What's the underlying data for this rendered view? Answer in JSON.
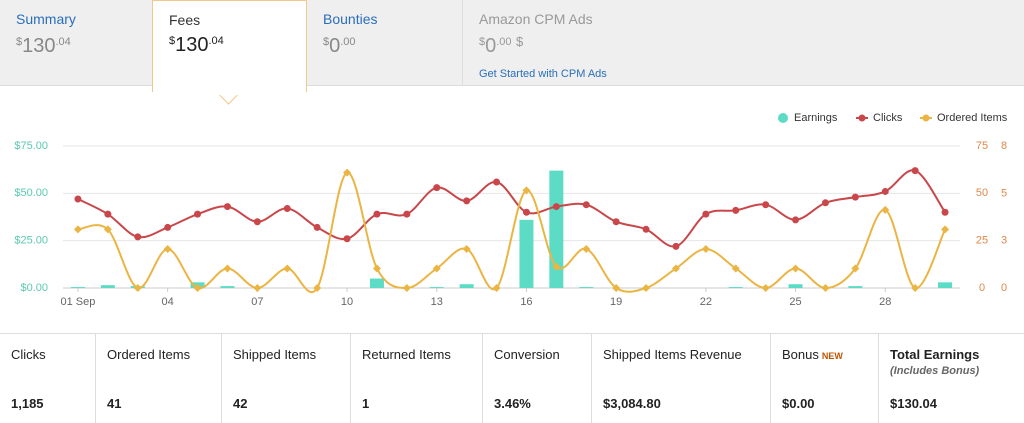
{
  "tabs": [
    {
      "label": "Summary",
      "amount": {
        "currency": "$",
        "whole": "130",
        "fraction": ".04"
      }
    },
    {
      "label": "Fees",
      "amount": {
        "currency": "$",
        "whole": "130",
        "fraction": ".04"
      }
    },
    {
      "label": "Bounties",
      "amount": {
        "currency": "$",
        "whole": "0",
        "fraction": ".00"
      }
    },
    {
      "label": "Amazon CPM Ads",
      "amount": {
        "currency": "$",
        "whole": "0",
        "fraction": ".00",
        "suffix": "$"
      },
      "link": "Get Started with CPM Ads"
    }
  ],
  "chart_data": {
    "type": "combo",
    "categories": [
      "01 Sep",
      null,
      null,
      "04",
      null,
      null,
      "07",
      null,
      null,
      "10",
      null,
      null,
      "13",
      null,
      null,
      "16",
      null,
      null,
      "19",
      null,
      null,
      "22",
      null,
      null,
      "25",
      null,
      null,
      "28",
      null,
      null
    ],
    "series": [
      {
        "name": "Earnings",
        "type": "bar",
        "axis": "y",
        "color": "#5cdcc4",
        "values": [
          0.5,
          1.5,
          1,
          0,
          3,
          1,
          0,
          0,
          0,
          0,
          5,
          0,
          0.5,
          2,
          0,
          36,
          62,
          0.5,
          0,
          0,
          0,
          0,
          0.5,
          0,
          2,
          0,
          1,
          0,
          0,
          3
        ]
      },
      {
        "name": "Clicks",
        "type": "line",
        "axis": "y2",
        "color": "#c9474a",
        "values": [
          47,
          39,
          27,
          32,
          39,
          43,
          35,
          42,
          32,
          26,
          39,
          39,
          53,
          46,
          56,
          40,
          43,
          44,
          35,
          31,
          22,
          39,
          41,
          44,
          36,
          45,
          48,
          51,
          62,
          40
        ]
      },
      {
        "name": "Ordered Items",
        "type": "line",
        "axis": "y3",
        "color": "#ebb544",
        "values": [
          3.3,
          3.3,
          0,
          2.2,
          0,
          1.1,
          0,
          1.1,
          0,
          6.5,
          1.1,
          0,
          1.1,
          2.2,
          0,
          5.5,
          1.2,
          2.2,
          0,
          0,
          1.1,
          2.2,
          1.1,
          0,
          1.1,
          0,
          1.1,
          4.4,
          0,
          3.3
        ]
      }
    ],
    "ylim": [
      0,
      75
    ],
    "yticks": [
      {
        "value": 0,
        "label": "$0.00"
      },
      {
        "value": 25,
        "label": "$25.00"
      },
      {
        "value": 50,
        "label": "$50.00"
      },
      {
        "value": 75,
        "label": "$75.00"
      }
    ],
    "y2lim": [
      0,
      75
    ],
    "y2ticks": [
      0,
      25,
      50,
      75
    ],
    "y3lim": [
      0,
      8
    ],
    "y3ticks": [
      0,
      {
        "value": 2.67,
        "label": "3"
      },
      {
        "value": 5.33,
        "label": "5"
      },
      8
    ],
    "grid": true,
    "legend": "top-right"
  },
  "stats": [
    {
      "label": "Clicks",
      "value": "1,185"
    },
    {
      "label": "Ordered Items",
      "value": "41"
    },
    {
      "label": "Shipped Items",
      "value": "42"
    },
    {
      "label": "Returned Items",
      "value": "1"
    },
    {
      "label": "Conversion",
      "value": "3.46%"
    },
    {
      "label": "Shipped Items Revenue",
      "value": "$3,084.80"
    },
    {
      "label": "Bonus",
      "badge": "NEW",
      "value": "$0.00"
    },
    {
      "label": "Total Earnings",
      "note": "(Includes Bonus)",
      "value": "$130.04"
    }
  ]
}
